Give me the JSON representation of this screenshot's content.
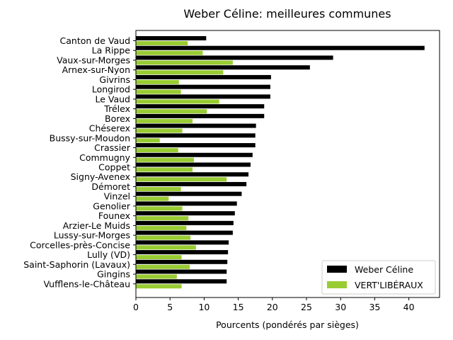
{
  "chart_data": {
    "type": "bar",
    "orientation": "horizontal",
    "title": "Weber Céline: meilleures communes",
    "xlabel": "Pourcents (pondérés par sièges)",
    "ylabel": "",
    "xlim": [
      0,
      44.5
    ],
    "xticks": [
      "0",
      "5",
      "10",
      "15",
      "20",
      "25",
      "30",
      "35",
      "40"
    ],
    "grid": false,
    "legend_position": "bottom-right",
    "categories": [
      "Canton de Vaud",
      "La Rippe",
      "Vaux-sur-Morges",
      "Arnex-sur-Nyon",
      "Givrins",
      "Longirod",
      "Le Vaud",
      "Trélex",
      "Borex",
      "Chéserex",
      "Bussy-sur-Moudon",
      "Crassier",
      "Commugny",
      "Coppet",
      "Signy-Avenex",
      "Démoret",
      "Vinzel",
      "Genolier",
      "Founex",
      "Arzier-Le Muids",
      "Lussy-sur-Morges",
      "Corcelles-près-Concise",
      "Lully (VD)",
      "Saint-Saphorin (Lavaux)",
      "Gingins",
      "Vufflens-le-Château"
    ],
    "series": [
      {
        "name": "Weber Céline",
        "color": "#000000",
        "values": [
          10.3,
          42.3,
          28.9,
          25.5,
          19.8,
          19.7,
          19.7,
          18.8,
          18.8,
          17.6,
          17.5,
          17.5,
          17.1,
          16.8,
          16.5,
          16.2,
          15.5,
          14.8,
          14.5,
          14.3,
          14.2,
          13.6,
          13.5,
          13.4,
          13.3,
          13.3
        ]
      },
      {
        "name": "VERT'LIBÉRAUX",
        "color": "#99cc33",
        "values": [
          7.6,
          9.8,
          14.2,
          12.8,
          6.3,
          6.6,
          12.2,
          10.4,
          8.3,
          6.8,
          3.5,
          6.2,
          8.5,
          8.3,
          13.3,
          6.6,
          4.8,
          6.8,
          7.7,
          7.4,
          8.0,
          8.8,
          6.7,
          7.9,
          6.0,
          6.7
        ]
      }
    ]
  }
}
